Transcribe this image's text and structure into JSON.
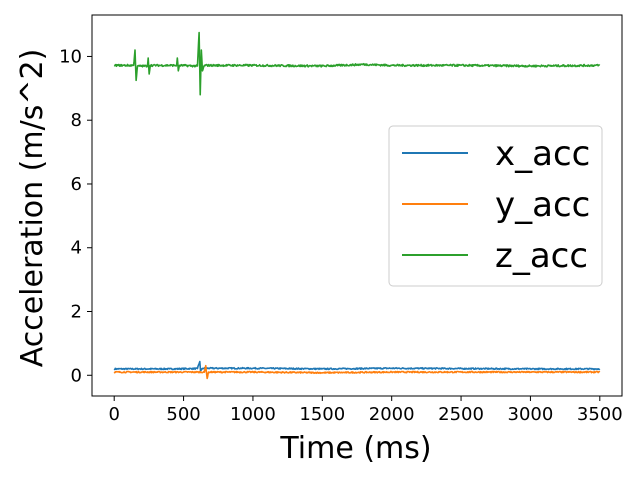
{
  "chart_data": {
    "type": "line",
    "title": "",
    "xlabel": "Time (ms)",
    "ylabel": "Acceleration (m/s^2)",
    "xlim": [
      -160,
      3660
    ],
    "ylim": [
      -0.65,
      11.3
    ],
    "xticks": [
      0,
      500,
      1000,
      1500,
      2000,
      2500,
      3000,
      3500
    ],
    "yticks": [
      0,
      2,
      4,
      6,
      8,
      10
    ],
    "grid": false,
    "legend": {
      "position": "right",
      "entries": [
        "x_acc",
        "y_acc",
        "z_acc"
      ]
    },
    "series": [
      {
        "name": "x_acc",
        "color": "#1f77b4",
        "baseline": 0.2,
        "noise": 0.02,
        "points": [
          [
            0,
            0.2
          ],
          [
            200,
            0.2
          ],
          [
            400,
            0.2
          ],
          [
            600,
            0.21
          ],
          [
            617,
            0.43
          ],
          [
            622,
            0.15
          ],
          [
            640,
            0.22
          ],
          [
            1000,
            0.22
          ],
          [
            1500,
            0.2
          ],
          [
            2000,
            0.22
          ],
          [
            2500,
            0.21
          ],
          [
            3000,
            0.2
          ],
          [
            3500,
            0.2
          ]
        ]
      },
      {
        "name": "y_acc",
        "color": "#ff7f0e",
        "baseline": 0.1,
        "noise": 0.02,
        "points": [
          [
            0,
            0.1
          ],
          [
            500,
            0.1
          ],
          [
            650,
            0.1
          ],
          [
            660,
            0.3
          ],
          [
            670,
            -0.1
          ],
          [
            680,
            0.1
          ],
          [
            1000,
            0.1
          ],
          [
            1500,
            0.08
          ],
          [
            2000,
            0.1
          ],
          [
            2500,
            0.1
          ],
          [
            3000,
            0.1
          ],
          [
            3500,
            0.1
          ]
        ]
      },
      {
        "name": "z_acc",
        "color": "#2ca02c",
        "baseline": 9.72,
        "noise": 0.03,
        "points": [
          [
            0,
            9.72
          ],
          [
            140,
            9.72
          ],
          [
            150,
            10.2
          ],
          [
            158,
            9.25
          ],
          [
            168,
            9.7
          ],
          [
            240,
            9.7
          ],
          [
            245,
            9.95
          ],
          [
            252,
            9.45
          ],
          [
            260,
            9.72
          ],
          [
            450,
            9.72
          ],
          [
            455,
            9.95
          ],
          [
            462,
            9.55
          ],
          [
            470,
            9.72
          ],
          [
            600,
            9.7
          ],
          [
            612,
            10.75
          ],
          [
            620,
            8.8
          ],
          [
            628,
            10.2
          ],
          [
            636,
            9.55
          ],
          [
            650,
            9.72
          ],
          [
            1000,
            9.72
          ],
          [
            1500,
            9.7
          ],
          [
            1800,
            9.75
          ],
          [
            2000,
            9.72
          ],
          [
            2500,
            9.72
          ],
          [
            3000,
            9.7
          ],
          [
            3500,
            9.72
          ]
        ]
      }
    ]
  }
}
